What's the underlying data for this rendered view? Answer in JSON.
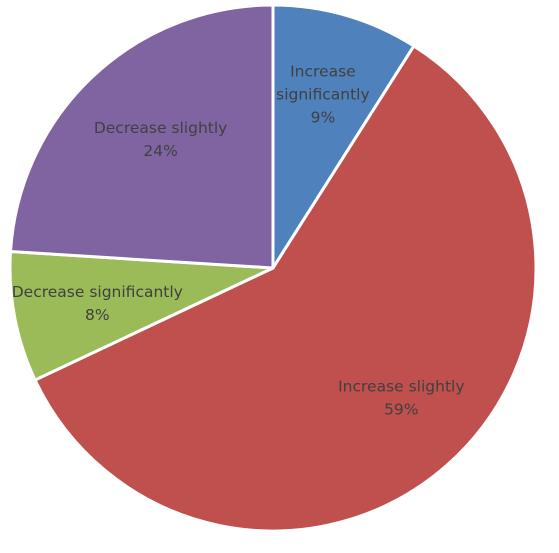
{
  "chart_data": {
    "type": "pie",
    "title": "",
    "start_angle_deg": 0,
    "direction": "clockwise",
    "slices": [
      {
        "label_lines": [
          "Increase",
          "significantly"
        ],
        "value": 9,
        "label": "9%",
        "color": "#4f81bd"
      },
      {
        "label_lines": [
          "Increase slightly"
        ],
        "value": 59,
        "label": "59%",
        "color": "#c0504d"
      },
      {
        "label_lines": [
          "Decrease significantly"
        ],
        "value": 8,
        "label": "8%",
        "color": "#9bbb59"
      },
      {
        "label_lines": [
          "Decrease slightly"
        ],
        "value": 24,
        "label": "24%",
        "color": "#8064a2"
      }
    ]
  }
}
